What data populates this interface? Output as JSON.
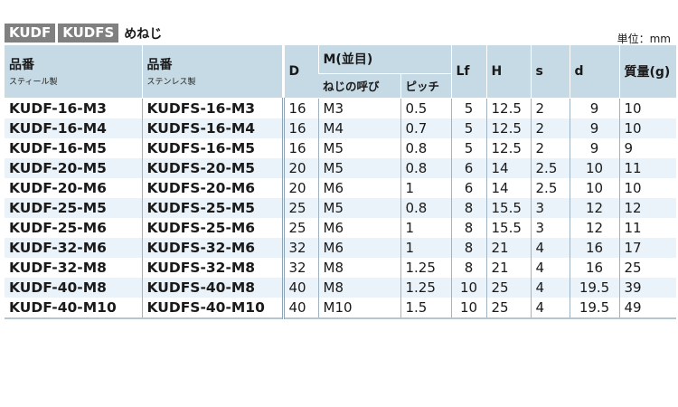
{
  "title": {
    "tags": [
      "KUDF",
      "KUDFS"
    ],
    "suffix": "めねじ"
  },
  "unit": "単位：mm",
  "headers": {
    "part_steel": "品番",
    "part_steel_sub": "スティール製",
    "part_stainless": "品番",
    "part_stainless_sub": "ステンレス製",
    "D": "D",
    "M_group": "M(並目)",
    "M_name": "ねじの呼び",
    "pitch": "ピッチ",
    "Lf": "Lf",
    "H": "H",
    "s": "s",
    "d": "d",
    "mass": "質量(g)"
  },
  "rows": [
    [
      "KUDF-16-M3",
      "KUDFS-16-M3",
      "16",
      "M3",
      "0.5",
      "5",
      "12.5",
      "2",
      "9",
      "10"
    ],
    [
      "KUDF-16-M4",
      "KUDFS-16-M4",
      "16",
      "M4",
      "0.7",
      "5",
      "12.5",
      "2",
      "9",
      "10"
    ],
    [
      "KUDF-16-M5",
      "KUDFS-16-M5",
      "16",
      "M5",
      "0.8",
      "5",
      "12.5",
      "2",
      "9",
      "9"
    ],
    [
      "KUDF-20-M5",
      "KUDFS-20-M5",
      "20",
      "M5",
      "0.8",
      "6",
      "14",
      "2.5",
      "10",
      "11"
    ],
    [
      "KUDF-20-M6",
      "KUDFS-20-M6",
      "20",
      "M6",
      "1",
      "6",
      "14",
      "2.5",
      "10",
      "10"
    ],
    [
      "KUDF-25-M5",
      "KUDFS-25-M5",
      "25",
      "M5",
      "0.8",
      "8",
      "15.5",
      "3",
      "12",
      "12"
    ],
    [
      "KUDF-25-M6",
      "KUDFS-25-M6",
      "25",
      "M6",
      "1",
      "8",
      "15.5",
      "3",
      "12",
      "11"
    ],
    [
      "KUDF-32-M6",
      "KUDFS-32-M6",
      "32",
      "M6",
      "1",
      "8",
      "21",
      "4",
      "16",
      "17"
    ],
    [
      "KUDF-32-M8",
      "KUDFS-32-M8",
      "32",
      "M8",
      "1.25",
      "8",
      "21",
      "4",
      "16",
      "25"
    ],
    [
      "KUDF-40-M8",
      "KUDFS-40-M8",
      "40",
      "M8",
      "1.25",
      "10",
      "25",
      "4",
      "19.5",
      "39"
    ],
    [
      "KUDF-40-M10",
      "KUDFS-40-M10",
      "40",
      "M10",
      "1.5",
      "10",
      "25",
      "4",
      "19.5",
      "49"
    ]
  ]
}
